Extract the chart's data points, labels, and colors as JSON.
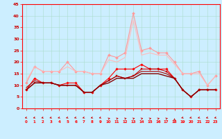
{
  "x": [
    0,
    1,
    2,
    3,
    4,
    5,
    6,
    7,
    8,
    9,
    10,
    11,
    12,
    13,
    14,
    15,
    16,
    17,
    18,
    19,
    20,
    21,
    22,
    23
  ],
  "series": [
    {
      "color": "#ff0000",
      "linewidth": 0.8,
      "marker": "D",
      "markersize": 1.8,
      "values": [
        8,
        13,
        11,
        11,
        10,
        11,
        11,
        7,
        7,
        10,
        13,
        17,
        17,
        17,
        19,
        17,
        17,
        17,
        13,
        8,
        5,
        8,
        8,
        8
      ]
    },
    {
      "color": "#cc0000",
      "linewidth": 0.8,
      "marker": "s",
      "markersize": 1.8,
      "values": [
        8,
        11,
        11,
        11,
        10,
        10,
        10,
        7,
        7,
        10,
        12,
        14,
        13,
        14,
        17,
        17,
        17,
        16,
        13,
        8,
        5,
        8,
        8,
        8
      ]
    },
    {
      "color": "#aa0000",
      "linewidth": 0.8,
      "marker": null,
      "markersize": 0,
      "values": [
        9,
        12,
        11,
        11,
        10,
        10,
        10,
        7,
        7,
        10,
        12,
        14,
        13,
        14,
        16,
        16,
        16,
        15,
        13,
        8,
        5,
        8,
        8,
        8
      ]
    },
    {
      "color": "#880000",
      "linewidth": 1.0,
      "marker": null,
      "markersize": 0,
      "values": [
        8,
        11,
        11,
        11,
        10,
        10,
        10,
        7,
        7,
        10,
        11,
        13,
        13,
        13,
        15,
        15,
        15,
        14,
        13,
        8,
        5,
        8,
        8,
        8
      ]
    },
    {
      "color": "#ff9999",
      "linewidth": 0.8,
      "marker": "D",
      "markersize": 2.0,
      "values": [
        11,
        18,
        16,
        16,
        16,
        20,
        16,
        16,
        15,
        15,
        23,
        22,
        24,
        41,
        25,
        26,
        24,
        24,
        20,
        15,
        15,
        16,
        10,
        14
      ]
    },
    {
      "color": "#ffbbbb",
      "linewidth": 0.8,
      "marker": null,
      "markersize": 0,
      "values": [
        12,
        18,
        16,
        16,
        16,
        18,
        16,
        16,
        15,
        15,
        21,
        20,
        22,
        38,
        23,
        24,
        23,
        23,
        19,
        15,
        15,
        15,
        10,
        14
      ]
    }
  ],
  "arrow_angles": [
    225,
    225,
    225,
    225,
    225,
    225,
    225,
    225,
    225,
    225,
    45,
    45,
    45,
    45,
    45,
    45,
    45,
    45,
    90,
    225,
    225,
    225,
    225,
    225
  ],
  "ylim": [
    0,
    45
  ],
  "yticks": [
    0,
    5,
    10,
    15,
    20,
    25,
    30,
    35,
    40,
    45
  ],
  "bg_color": "#cceeff",
  "grid_color": "#aaddcc",
  "axis_color": "#ff0000",
  "label_color": "#cc0000"
}
